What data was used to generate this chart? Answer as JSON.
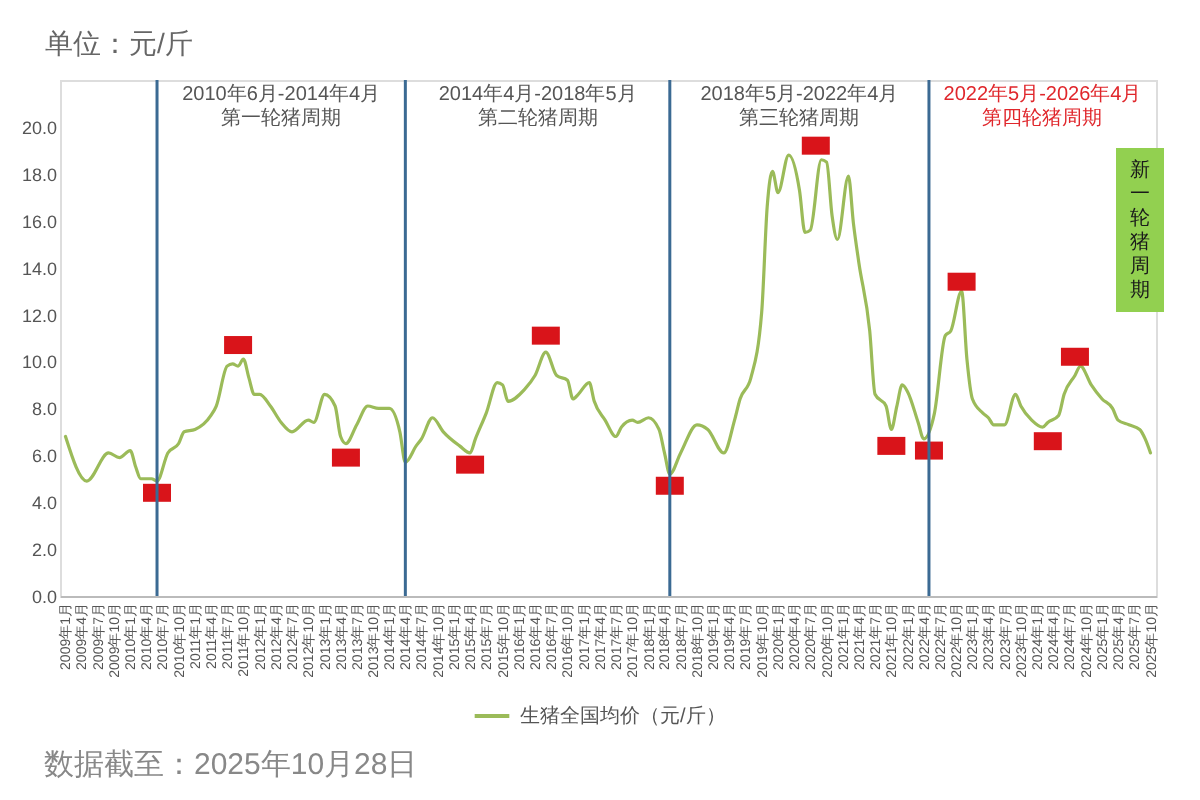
{
  "chart_data": {
    "type": "line",
    "ylabel": "单位：元/斤",
    "legend": "bottom",
    "xlim": [
      "2008-12",
      "2025-11"
    ],
    "ylim": [
      0,
      22
    ],
    "yticks": [
      {
        "value": 0,
        "label": "0.0"
      },
      {
        "value": 2,
        "label": "2.0"
      },
      {
        "value": 4,
        "label": "4.0"
      },
      {
        "value": 6,
        "label": "6.0"
      },
      {
        "value": 8,
        "label": "8.0"
      },
      {
        "value": 10,
        "label": "10.0"
      },
      {
        "value": 12,
        "label": "12.0"
      },
      {
        "value": 14,
        "label": "14.0"
      },
      {
        "value": 16,
        "label": "16.0"
      },
      {
        "value": 18,
        "label": "18.0"
      },
      {
        "value": 20,
        "label": "20.0"
      }
    ],
    "xticks": [
      {
        "value": "2009-01",
        "label": "2009年1月"
      },
      {
        "value": "2009-04",
        "label": "2009年4月"
      },
      {
        "value": "2009-07",
        "label": "2009年7月"
      },
      {
        "value": "2009-10",
        "label": "2009年10月"
      },
      {
        "value": "2010-01",
        "label": "2010年1月"
      },
      {
        "value": "2010-04",
        "label": "2010年4月"
      },
      {
        "value": "2010-07",
        "label": "2010年7月"
      },
      {
        "value": "2010-10",
        "label": "2010年10月"
      },
      {
        "value": "2011-01",
        "label": "2011年1月"
      },
      {
        "value": "2011-04",
        "label": "2011年4月"
      },
      {
        "value": "2011-07",
        "label": "2011年7月"
      },
      {
        "value": "2011-10",
        "label": "2011年10月"
      },
      {
        "value": "2012-01",
        "label": "2012年1月"
      },
      {
        "value": "2012-04",
        "label": "2012年4月"
      },
      {
        "value": "2012-07",
        "label": "2012年7月"
      },
      {
        "value": "2012-10",
        "label": "2012年10月"
      },
      {
        "value": "2013-01",
        "label": "2013年1月"
      },
      {
        "value": "2013-04",
        "label": "2013年4月"
      },
      {
        "value": "2013-07",
        "label": "2013年7月"
      },
      {
        "value": "2013-10",
        "label": "2013年10月"
      },
      {
        "value": "2014-01",
        "label": "2014年1月"
      },
      {
        "value": "2014-04",
        "label": "2014年4月"
      },
      {
        "value": "2014-07",
        "label": "2014年7月"
      },
      {
        "value": "2014-10",
        "label": "2014年10月"
      },
      {
        "value": "2015-01",
        "label": "2015年1月"
      },
      {
        "value": "2015-04",
        "label": "2015年4月"
      },
      {
        "value": "2015-07",
        "label": "2015年7月"
      },
      {
        "value": "2015-10",
        "label": "2015年10月"
      },
      {
        "value": "2016-01",
        "label": "2016年1月"
      },
      {
        "value": "2016-04",
        "label": "2016年4月"
      },
      {
        "value": "2016-07",
        "label": "2016年7月"
      },
      {
        "value": "2016-10",
        "label": "2016年10月"
      },
      {
        "value": "2017-01",
        "label": "2017年1月"
      },
      {
        "value": "2017-04",
        "label": "2017年4月"
      },
      {
        "value": "2017-07",
        "label": "2017年7月"
      },
      {
        "value": "2017-10",
        "label": "2017年10月"
      },
      {
        "value": "2018-01",
        "label": "2018年1月"
      },
      {
        "value": "2018-04",
        "label": "2018年4月"
      },
      {
        "value": "2018-07",
        "label": "2018年7月"
      },
      {
        "value": "2018-10",
        "label": "2018年10月"
      },
      {
        "value": "2019-01",
        "label": "2019年1月"
      },
      {
        "value": "2019-04",
        "label": "2019年4月"
      },
      {
        "value": "2019-07",
        "label": "2019年7月"
      },
      {
        "value": "2019-10",
        "label": "2019年10月"
      },
      {
        "value": "2020-01",
        "label": "2020年1月"
      },
      {
        "value": "2020-04",
        "label": "2020年4月"
      },
      {
        "value": "2020-07",
        "label": "2020年7月"
      },
      {
        "value": "2020-10",
        "label": "2020年10月"
      },
      {
        "value": "2021-01",
        "label": "2021年1月"
      },
      {
        "value": "2021-04",
        "label": "2021年4月"
      },
      {
        "value": "2021-07",
        "label": "2021年7月"
      },
      {
        "value": "2021-10",
        "label": "2021年10月"
      },
      {
        "value": "2022-01",
        "label": "2022年1月"
      },
      {
        "value": "2022-04",
        "label": "2022年4月"
      },
      {
        "value": "2022-07",
        "label": "2022年7月"
      },
      {
        "value": "2022-10",
        "label": "2022年10月"
      },
      {
        "value": "2023-01",
        "label": "2023年1月"
      },
      {
        "value": "2023-04",
        "label": "2023年4月"
      },
      {
        "value": "2023-07",
        "label": "2023年7月"
      },
      {
        "value": "2023-10",
        "label": "2023年10月"
      },
      {
        "value": "2024-01",
        "label": "2024年1月"
      },
      {
        "value": "2024-04",
        "label": "2024年4月"
      },
      {
        "value": "2024-07",
        "label": "2024年7月"
      },
      {
        "value": "2024-10",
        "label": "2024年10月"
      },
      {
        "value": "2025-01",
        "label": "2025年1月"
      },
      {
        "value": "2025-04",
        "label": "2025年4月"
      },
      {
        "value": "2025-07",
        "label": "2025年7月"
      },
      {
        "value": "2025-10",
        "label": "2025年10月"
      }
    ],
    "series": [
      {
        "name": "生猪全国均价（元/斤）",
        "color": "#9bbb59",
        "x": [
          "2009-01",
          "2009-05",
          "2009-09",
          "2009-11",
          "2010-01",
          "2010-02",
          "2010-03",
          "2010-05",
          "2010-06",
          "2010-08",
          "2010-10",
          "2010-11",
          "2011-01",
          "2011-04",
          "2011-05",
          "2011-07",
          "2011-08",
          "2011-09",
          "2011-10",
          "2011-11",
          "2011-12",
          "2012-01",
          "2012-03",
          "2012-05",
          "2012-07",
          "2012-10",
          "2012-11",
          "2013-01",
          "2013-03",
          "2013-04",
          "2013-05",
          "2013-07",
          "2013-09",
          "2013-11",
          "2014-01",
          "2014-03",
          "2014-04",
          "2014-06",
          "2014-07",
          "2014-09",
          "2014-11",
          "2015-02",
          "2015-04",
          "2015-05",
          "2015-07",
          "2015-09",
          "2015-10",
          "2015-11",
          "2016-02",
          "2016-04",
          "2016-06",
          "2016-08",
          "2016-10",
          "2016-11",
          "2016-12",
          "2017-02",
          "2017-03",
          "2017-05",
          "2017-07",
          "2017-08",
          "2017-10",
          "2017-11",
          "2018-01",
          "2018-03",
          "2018-04",
          "2018-05",
          "2018-07",
          "2018-10",
          "2018-12",
          "2019-03",
          "2019-05",
          "2019-06",
          "2019-08",
          "2019-10",
          "2019-11",
          "2019-12",
          "2020-01",
          "2020-03",
          "2020-05",
          "2020-06",
          "2020-07",
          "2020-09",
          "2020-10",
          "2020-11",
          "2020-12",
          "2021-02",
          "2021-03",
          "2021-04",
          "2021-06",
          "2021-07",
          "2021-09",
          "2021-10",
          "2021-11",
          "2021-12",
          "2022-01",
          "2022-03",
          "2022-04",
          "2022-06",
          "2022-08",
          "2022-09",
          "2022-11",
          "2022-12",
          "2023-01",
          "2023-03",
          "2023-04",
          "2023-05",
          "2023-07",
          "2023-09",
          "2023-10",
          "2023-12",
          "2024-02",
          "2024-03",
          "2024-05",
          "2024-06",
          "2024-08",
          "2024-09",
          "2024-11",
          "2025-01",
          "2025-03",
          "2025-04",
          "2025-06",
          "2025-08",
          "2025-09",
          "2025-10"
        ],
        "values": [
          6.8,
          4.9,
          6.1,
          5.9,
          6.2,
          5.5,
          5.0,
          5.0,
          4.9,
          6.1,
          6.5,
          7.0,
          7.1,
          7.7,
          8.1,
          9.8,
          9.9,
          9.8,
          10.1,
          9.3,
          8.6,
          8.6,
          8.1,
          7.4,
          7.0,
          7.5,
          7.4,
          8.6,
          8.1,
          6.8,
          6.5,
          7.3,
          8.1,
          8.0,
          8.0,
          7.0,
          5.7,
          6.4,
          6.7,
          7.6,
          7.0,
          6.4,
          6.1,
          6.7,
          7.8,
          9.1,
          9.0,
          8.3,
          8.8,
          9.4,
          10.4,
          9.4,
          9.2,
          8.4,
          8.6,
          9.1,
          8.3,
          7.5,
          6.8,
          7.2,
          7.5,
          7.4,
          7.6,
          7.1,
          6.1,
          5.2,
          6.1,
          7.3,
          7.1,
          6.1,
          7.5,
          8.4,
          9.3,
          12.1,
          16.6,
          18.1,
          17.2,
          18.8,
          17.3,
          15.5,
          15.6,
          18.6,
          18.5,
          16.2,
          15.2,
          17.9,
          15.9,
          14.2,
          11.3,
          8.6,
          8.1,
          7.1,
          8.1,
          9.0,
          8.7,
          7.4,
          6.7,
          7.8,
          11.1,
          11.3,
          13.0,
          10.1,
          8.4,
          7.8,
          7.6,
          7.3,
          7.3,
          8.6,
          8.1,
          7.5,
          7.2,
          7.4,
          7.7,
          8.6,
          9.4,
          9.8,
          9.0,
          8.4,
          8.0,
          7.5,
          7.3,
          7.1,
          6.7,
          6.1
        ]
      },
      {
        "type": "scatter",
        "marker": "square",
        "color": "#d9141a",
        "x": [
          "2010-06",
          "2011-09",
          "2013-05",
          "2015-04",
          "2016-06",
          "2018-05",
          "2020-08",
          "2021-10",
          "2022-05",
          "2022-11",
          "2024-03",
          "2024-08"
        ],
        "values": [
          4.4,
          10.7,
          5.9,
          5.6,
          11.1,
          4.7,
          19.2,
          6.4,
          6.2,
          13.4,
          6.6,
          10.2
        ]
      }
    ],
    "ref_lines": [
      {
        "axis": "x",
        "value": "2010-06",
        "color": "#3b6a93"
      },
      {
        "axis": "x",
        "value": "2014-04",
        "color": "#3b6a93"
      },
      {
        "axis": "x",
        "value": "2018-05",
        "color": "#3b6a93"
      },
      {
        "axis": "x",
        "value": "2022-05",
        "color": "#3b6a93"
      }
    ],
    "annotations": [
      "2010年6月-2014年4月",
      "第一轮猪周期",
      "2014年4月-2018年5月",
      "第二轮猪周期",
      "2018年5月-2022年4月",
      "第三轮猪周期",
      "2022年5月-2026年4月",
      "第四轮猪周期",
      "新一轮猪周期",
      "数据截至：2025年10月28日"
    ]
  }
}
